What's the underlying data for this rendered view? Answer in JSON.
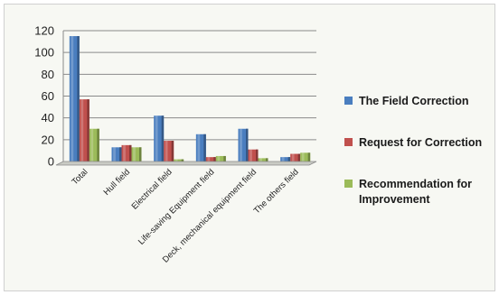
{
  "chart_data": {
    "type": "bar",
    "ylim": [
      0,
      120
    ],
    "yticks": [
      0,
      20,
      40,
      60,
      80,
      100,
      120
    ],
    "grid": true,
    "legend_position": "right",
    "categories": [
      "Total",
      "Hull field",
      "Electrical field",
      "Life-saving Equipment field",
      "Deck, mechanical equipment field",
      "The others field"
    ],
    "series": [
      {
        "name": "The Field Correction",
        "color": "#4a7ebf",
        "values": [
          115,
          13,
          42,
          25,
          30,
          4
        ]
      },
      {
        "name": "Request for Correction",
        "color": "#c0504d",
        "values": [
          57,
          15,
          19,
          4,
          11,
          7
        ]
      },
      {
        "name": "Recommendation for Improvement",
        "color": "#9bbb59",
        "values": [
          30,
          13,
          2,
          5,
          3,
          8
        ]
      }
    ],
    "legend_lines": [
      [
        "The Field Correction"
      ],
      [
        "Request for Correction"
      ],
      [
        "Recommendation for",
        "Improvement"
      ]
    ]
  }
}
